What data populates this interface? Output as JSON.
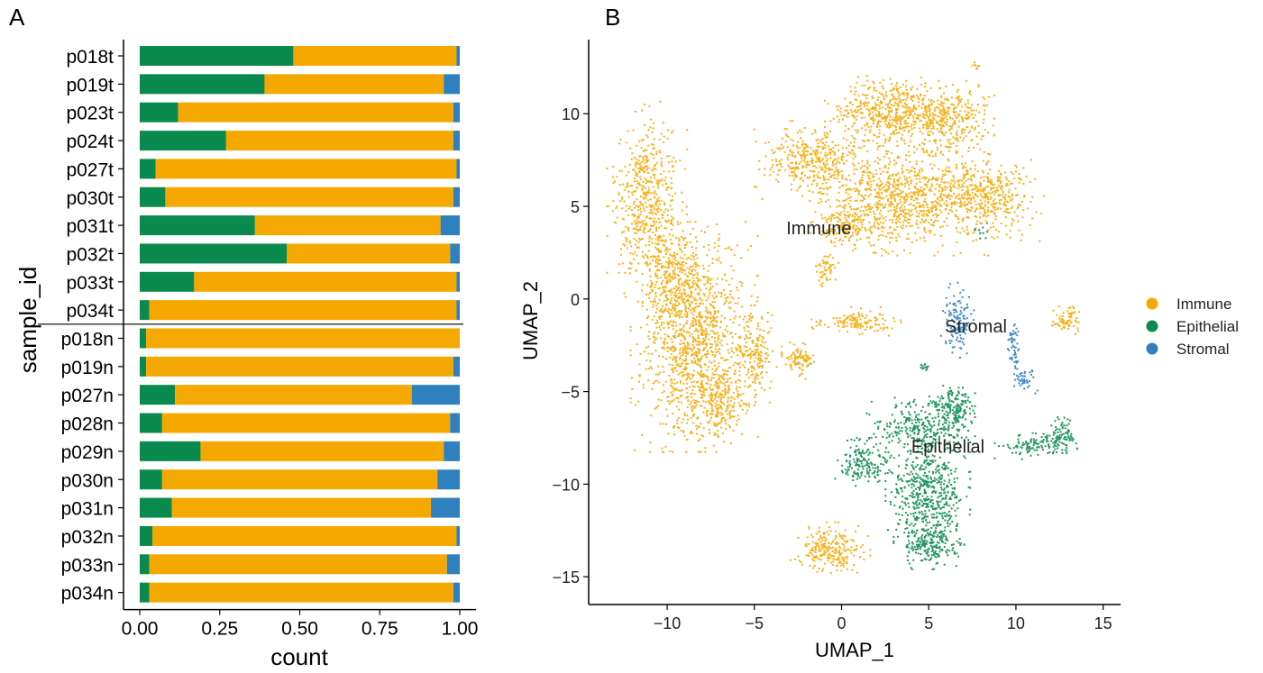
{
  "panels": {
    "a_label": "A",
    "b_label": "B"
  },
  "colors": {
    "immune": "#F5A800",
    "epithelial": "#0A8A4E",
    "stromal": "#2F80BE"
  },
  "chart_data": [
    {
      "type": "bar",
      "orientation": "horizontal",
      "stacked": true,
      "xlabel": "count",
      "ylabel": "sample_id",
      "xlim": [
        0,
        1
      ],
      "x_ticks": [
        "0.00",
        "0.25",
        "0.50",
        "0.75",
        "1.00"
      ],
      "categories": [
        "p018t",
        "p019t",
        "p023t",
        "p024t",
        "p027t",
        "p030t",
        "p031t",
        "p032t",
        "p033t",
        "p034t",
        "p018n",
        "p019n",
        "p027n",
        "p028n",
        "p029n",
        "p030n",
        "p031n",
        "p032n",
        "p033n",
        "p034n"
      ],
      "separator_after": "p034t",
      "series": [
        {
          "name": "Epithelial",
          "color": "#0A8A4E",
          "values": [
            0.48,
            0.39,
            0.12,
            0.27,
            0.05,
            0.08,
            0.36,
            0.46,
            0.17,
            0.03,
            0.02,
            0.02,
            0.11,
            0.07,
            0.19,
            0.07,
            0.1,
            0.04,
            0.03,
            0.03
          ]
        },
        {
          "name": "Immune",
          "color": "#F5A800",
          "values": [
            0.51,
            0.56,
            0.86,
            0.71,
            0.94,
            0.9,
            0.58,
            0.51,
            0.82,
            0.96,
            0.98,
            0.96,
            0.74,
            0.9,
            0.76,
            0.86,
            0.81,
            0.95,
            0.93,
            0.95
          ]
        },
        {
          "name": "Stromal",
          "color": "#2F80BE",
          "values": [
            0.01,
            0.05,
            0.02,
            0.02,
            0.01,
            0.02,
            0.06,
            0.03,
            0.01,
            0.01,
            0.0,
            0.02,
            0.15,
            0.03,
            0.05,
            0.07,
            0.09,
            0.01,
            0.04,
            0.02
          ]
        }
      ],
      "grid": false,
      "legend": "none"
    },
    {
      "type": "scatter",
      "xlabel": "UMAP_1",
      "ylabel": "UMAP_2",
      "xlim": [
        -14.5,
        16
      ],
      "ylim": [
        -16.5,
        14
      ],
      "x_ticks": [
        -10,
        -5,
        0,
        5,
        10,
        15
      ],
      "y_ticks": [
        10,
        5,
        0,
        -5,
        -10,
        -15
      ],
      "x_tick_labels": [
        "−10",
        "−5",
        "0",
        "5",
        "10",
        "15"
      ],
      "y_tick_labels": [
        "10",
        "5",
        "0",
        "−5",
        "−10",
        "−15"
      ],
      "grid": false,
      "legend_position": "right",
      "legend": [
        {
          "name": "Immune",
          "color": "#F5A800"
        },
        {
          "name": "Epithelial",
          "color": "#0A8A4E"
        },
        {
          "name": "Stromal",
          "color": "#2F80BE"
        }
      ],
      "cluster_labels": [
        {
          "text": "Immune",
          "x": -1.3,
          "y": 3.5
        },
        {
          "text": "Stromal",
          "x": 7.7,
          "y": -1.8
        },
        {
          "text": "Epithelial",
          "x": 6.1,
          "y": -8.3
        }
      ],
      "clusters": [
        {
          "name": "Immune",
          "color": "#F5A800",
          "blobs": [
            {
              "x": -11.2,
              "y": 5.3,
              "rx": 1.7,
              "ry": 4.0,
              "n": 520
            },
            {
              "x": -8.5,
              "y": -2.0,
              "rx": 2.7,
              "ry": 4.6,
              "n": 1100
            },
            {
              "x": -9.7,
              "y": 1.2,
              "rx": 1.3,
              "ry": 2.4,
              "n": 260
            },
            {
              "x": -7.1,
              "y": -5.6,
              "rx": 1.3,
              "ry": 1.7,
              "n": 230
            },
            {
              "x": -5.0,
              "y": -3.0,
              "rx": 1.0,
              "ry": 2.0,
              "n": 180
            },
            {
              "x": -2.4,
              "y": -3.2,
              "rx": 0.8,
              "ry": 0.8,
              "n": 90
            },
            {
              "x": -1.8,
              "y": 7.5,
              "rx": 2.4,
              "ry": 1.6,
              "n": 380
            },
            {
              "x": 2.5,
              "y": 10.2,
              "rx": 2.6,
              "ry": 1.4,
              "n": 460
            },
            {
              "x": 6.0,
              "y": 9.8,
              "rx": 2.0,
              "ry": 1.5,
              "n": 330
            },
            {
              "x": 3.5,
              "y": 5.5,
              "rx": 3.6,
              "ry": 2.3,
              "n": 820
            },
            {
              "x": 8.2,
              "y": 5.6,
              "rx": 2.5,
              "ry": 1.8,
              "n": 420
            },
            {
              "x": 0.2,
              "y": 4.0,
              "rx": 1.5,
              "ry": 1.0,
              "n": 160
            },
            {
              "x": -0.9,
              "y": 1.6,
              "rx": 0.5,
              "ry": 0.8,
              "n": 50
            },
            {
              "x": 0.8,
              "y": -1.2,
              "rx": 1.9,
              "ry": 0.6,
              "n": 130
            },
            {
              "x": 12.9,
              "y": -1.0,
              "rx": 0.7,
              "ry": 0.7,
              "n": 70
            },
            {
              "x": -0.7,
              "y": -13.5,
              "rx": 1.7,
              "ry": 1.1,
              "n": 240
            },
            {
              "x": 7.7,
              "y": 12.6,
              "rx": 0.2,
              "ry": 0.3,
              "n": 8
            }
          ]
        },
        {
          "name": "Epithelial",
          "color": "#0A8A4E",
          "blobs": [
            {
              "x": 4.5,
              "y": -6.8,
              "rx": 2.3,
              "ry": 1.4,
              "n": 330
            },
            {
              "x": 1.2,
              "y": -8.8,
              "rx": 1.2,
              "ry": 1.0,
              "n": 160
            },
            {
              "x": 4.9,
              "y": -10.5,
              "rx": 1.8,
              "ry": 2.1,
              "n": 480
            },
            {
              "x": 5.1,
              "y": -13.2,
              "rx": 1.6,
              "ry": 1.0,
              "n": 220
            },
            {
              "x": 6.5,
              "y": -5.8,
              "rx": 1.0,
              "ry": 0.9,
              "n": 140
            },
            {
              "x": 11.3,
              "y": -7.8,
              "rx": 1.9,
              "ry": 0.6,
              "n": 130
            },
            {
              "x": 12.6,
              "y": -7.2,
              "rx": 0.6,
              "ry": 0.8,
              "n": 60
            },
            {
              "x": 4.7,
              "y": -3.6,
              "rx": 0.3,
              "ry": 0.3,
              "n": 12
            },
            {
              "x": 8.0,
              "y": 3.6,
              "rx": 0.4,
              "ry": 0.4,
              "n": 10
            }
          ]
        },
        {
          "name": "Stromal",
          "color": "#2F80BE",
          "blobs": [
            {
              "x": 6.6,
              "y": -1.1,
              "rx": 0.7,
              "ry": 1.5,
              "n": 120
            },
            {
              "x": 9.8,
              "y": -2.5,
              "rx": 0.3,
              "ry": 1.3,
              "n": 55
            },
            {
              "x": 10.4,
              "y": -4.4,
              "rx": 0.6,
              "ry": 0.5,
              "n": 40
            }
          ]
        }
      ]
    }
  ]
}
